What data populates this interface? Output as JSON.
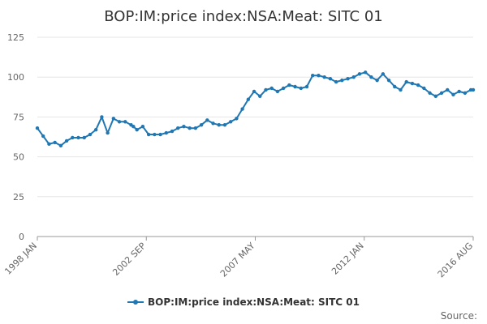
{
  "chart_data": {
    "type": "line",
    "title": "BOP:IM:price index:NSA:Meat: SITC 01",
    "xlabel": "",
    "ylabel": "",
    "ylim": [
      0,
      125
    ],
    "y_ticks": [
      0,
      25,
      50,
      75,
      100,
      125
    ],
    "x_ticks": [
      "1998 JAN",
      "2002 SEP",
      "2007 MAY",
      "2012 JAN",
      "2016 AUG"
    ],
    "grid": true,
    "legend_position": "bottom",
    "color": "#1f77b4",
    "source": "Source:",
    "series": [
      {
        "name": "BOP:IM:price index:NSA:Meat: SITC 01",
        "x": [
          1998.0,
          1998.25,
          1998.5,
          1998.75,
          1999.0,
          1999.25,
          1999.5,
          1999.75,
          2000.0,
          2000.25,
          2000.5,
          2000.75,
          2001.0,
          2001.25,
          2001.5,
          2001.75,
          2002.0,
          2002.1,
          2002.25,
          2002.5,
          2002.75,
          2003.0,
          2003.25,
          2003.5,
          2003.75,
          2004.0,
          2004.25,
          2004.5,
          2004.75,
          2005.0,
          2005.25,
          2005.5,
          2005.75,
          2006.0,
          2006.25,
          2006.5,
          2006.75,
          2007.0,
          2007.25,
          2007.5,
          2007.75,
          2008.0,
          2008.25,
          2008.5,
          2008.75,
          2009.0,
          2009.25,
          2009.5,
          2009.75,
          2010.0,
          2010.25,
          2010.5,
          2010.75,
          2011.0,
          2011.25,
          2011.5,
          2011.75,
          2012.0,
          2012.25,
          2012.5,
          2012.75,
          2013.0,
          2013.25,
          2013.5,
          2013.75,
          2014.0,
          2014.25,
          2014.5,
          2014.75,
          2015.0,
          2015.25,
          2015.5,
          2015.75,
          2016.0,
          2016.25,
          2016.5,
          2016.6
        ],
        "values": [
          68,
          63,
          58,
          59,
          57,
          60,
          62,
          62,
          62,
          64,
          67,
          75,
          65,
          74,
          72,
          72,
          70,
          69,
          67,
          69,
          64,
          64,
          64,
          65,
          66,
          68,
          69,
          68,
          68,
          70,
          73,
          71,
          70,
          70,
          72,
          74,
          80,
          86,
          91,
          88,
          92,
          93,
          91,
          93,
          95,
          94,
          93,
          94,
          101,
          101,
          100,
          99,
          97,
          98,
          99,
          100,
          102,
          103,
          100,
          98,
          102,
          98,
          94,
          92,
          97,
          96,
          95,
          93,
          90,
          88,
          90,
          92,
          89,
          91,
          90,
          92,
          92
        ]
      }
    ]
  }
}
